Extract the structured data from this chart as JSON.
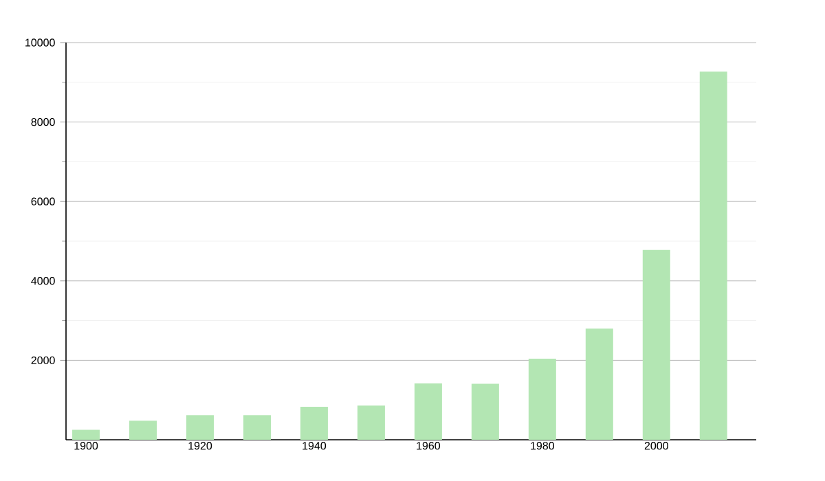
{
  "chart_data": {
    "type": "bar",
    "x": [
      1900,
      1910,
      1920,
      1930,
      1940,
      1950,
      1960,
      1970,
      1980,
      1990,
      2000,
      2010
    ],
    "values": [
      250,
      480,
      620,
      620,
      830,
      860,
      1420,
      1410,
      2040,
      2800,
      4780,
      9270
    ],
    "color": "#b3e6b3",
    "xlim": [
      1896.5,
      2017.5
    ],
    "xticks": [
      1900,
      1920,
      1940,
      1960,
      1980,
      2000
    ],
    "ylim": [
      0,
      10000
    ],
    "yticks": [
      2000,
      4000,
      6000,
      8000,
      10000
    ],
    "grid": "y"
  }
}
